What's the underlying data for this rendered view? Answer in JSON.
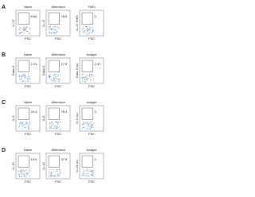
{
  "panels": [
    {
      "letter": "A",
      "plots": [
        {
          "title": "Naive",
          "y_label": "IL-17",
          "x_label": "FSC",
          "gate_value": 8.84
        },
        {
          "title": "Alternaria",
          "y_label": "IL-17",
          "x_label": "FSC",
          "gate_value": 78.9
        },
        {
          "title": "FMO",
          "y_label": "IL-17 FMO",
          "x_label": "FSC",
          "gate_value": 0
        }
      ]
    },
    {
      "letter": "B",
      "plots": [
        {
          "title": "Naive",
          "y_label": "Gata-3",
          "x_label": "FSC",
          "gate_value": 2.21
        },
        {
          "title": "Alternaria",
          "y_label": "Gata-3",
          "x_label": "FSC",
          "gate_value": 17.8
        },
        {
          "title": "Isotype",
          "y_label": "Gata-3 Iso",
          "x_label": "FSC",
          "gate_value": 2.37
        }
      ]
    },
    {
      "letter": "C",
      "plots": [
        {
          "title": "Naive",
          "y_label": "IL-5",
          "x_label": "FSC",
          "gate_value": 24.4
        },
        {
          "title": "Alternaria",
          "y_label": "IL-5",
          "x_label": "FSC",
          "gate_value": 76.4
        },
        {
          "title": "Isotype",
          "y_label": "IL-5 Iso",
          "x_label": "FSC",
          "gate_value": 0
        }
      ]
    },
    {
      "letter": "D",
      "plots": [
        {
          "title": "Naive",
          "y_label": "IL-13",
          "x_label": "FSC",
          "gate_value": 15.9
        },
        {
          "title": "Alternaria",
          "y_label": "IL-13",
          "x_label": "FSC",
          "gate_value": 37.8
        },
        {
          "title": "Isotype",
          "y_label": "IL-13 Iso",
          "x_label": "FSC",
          "gate_value": 0
        }
      ]
    }
  ]
}
